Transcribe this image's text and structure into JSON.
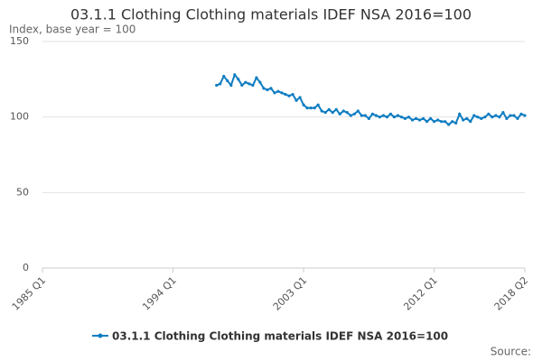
{
  "chart_data": {
    "type": "line",
    "title": "03.1.1 Clothing Clothing materials IDEF NSA 2016=100",
    "subtitle": "Index, base year = 100",
    "source": "Source:",
    "categories": [
      "1985 Q1",
      null,
      null,
      null,
      null,
      null,
      null,
      null,
      null,
      null,
      null,
      null,
      null,
      null,
      null,
      null,
      null,
      null,
      null,
      null,
      null,
      null,
      null,
      null,
      null,
      null,
      null,
      null,
      null,
      null,
      null,
      null,
      null,
      null,
      null,
      null,
      "1994 Q1",
      null,
      null,
      null,
      null,
      null,
      null,
      null,
      null,
      null,
      null,
      null,
      null,
      null,
      null,
      null,
      null,
      null,
      null,
      null,
      null,
      null,
      null,
      null,
      null,
      null,
      null,
      null,
      null,
      null,
      null,
      null,
      null,
      null,
      null,
      null,
      "2003 Q1",
      null,
      null,
      null,
      null,
      null,
      null,
      null,
      null,
      null,
      null,
      null,
      null,
      null,
      null,
      null,
      null,
      null,
      null,
      null,
      null,
      null,
      null,
      null,
      null,
      null,
      null,
      null,
      null,
      null,
      null,
      null,
      null,
      null,
      null,
      null,
      "2012 Q1",
      null,
      null,
      null,
      null,
      null,
      null,
      null,
      null,
      null,
      null,
      null,
      null,
      null,
      null,
      null,
      null,
      null,
      null,
      null,
      null,
      null,
      null,
      null,
      null,
      "2018 Q2"
    ],
    "series": [
      {
        "name": "03.1.1 Clothing Clothing materials IDEF NSA 2016=100",
        "color": "#0f7dc2",
        "values": [
          null,
          null,
          null,
          null,
          null,
          null,
          null,
          null,
          null,
          null,
          null,
          null,
          null,
          null,
          null,
          null,
          null,
          null,
          null,
          null,
          null,
          null,
          null,
          null,
          null,
          null,
          null,
          null,
          null,
          null,
          null,
          null,
          null,
          null,
          null,
          null,
          null,
          null,
          null,
          null,
          null,
          null,
          null,
          null,
          null,
          null,
          null,
          null,
          121,
          122,
          127,
          124,
          121,
          128,
          125,
          121,
          123,
          122,
          121,
          126,
          123,
          119,
          118,
          119,
          116,
          117,
          116,
          115,
          114,
          115,
          111,
          113,
          108,
          106,
          106,
          106,
          108,
          104,
          103,
          105,
          103,
          105,
          102,
          104,
          103,
          101,
          102,
          104,
          101,
          101,
          99,
          102,
          101,
          100,
          101,
          100,
          102,
          100,
          101,
          100,
          99,
          100,
          98,
          99,
          98,
          99,
          97,
          99,
          97,
          98,
          97,
          97,
          95,
          97,
          96,
          102,
          98,
          99,
          97,
          101,
          100,
          99,
          100,
          102,
          100,
          101,
          100,
          103,
          99,
          101,
          101,
          99,
          102,
          101
        ]
      }
    ],
    "ylim": [
      0,
      150
    ],
    "yticks": [
      0,
      50,
      100,
      150
    ],
    "grid": true
  }
}
